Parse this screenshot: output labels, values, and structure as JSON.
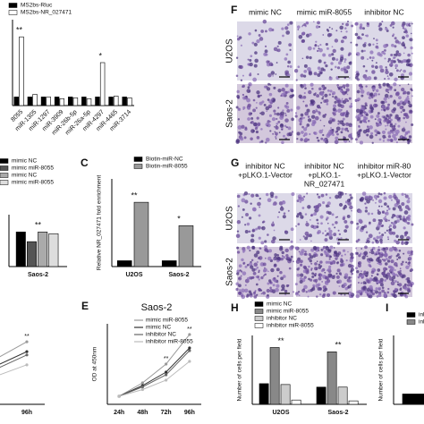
{
  "chart_data": [
    {
      "type": "bar",
      "categories": [
        "8055",
        "miR-1305",
        "miR-1297",
        "miR-3909",
        "miR-26b-5p",
        "miR-26a-5p",
        "miR-4297",
        "miR-4465",
        "miR-3714"
      ],
      "series": [
        {
          "name": "MS2bs-Rluc",
          "color": "#000000",
          "values": [
            1,
            1,
            1,
            1,
            1,
            1,
            1,
            1,
            1
          ]
        },
        {
          "name": "MS2bs-NR_027471",
          "color": "#ffffff",
          "values": [
            8,
            1.3,
            1,
            0.8,
            0.9,
            0.8,
            5,
            1.1,
            0.9
          ]
        }
      ],
      "significance": [
        "**",
        null,
        null,
        null,
        null,
        null,
        "*",
        null,
        null
      ],
      "ylim": [
        0,
        10
      ]
    },
    {
      "type": "bar",
      "categories": [
        "Saos-2"
      ],
      "series": [
        {
          "name": "mimic NC",
          "color": "#000000",
          "values": [
            1.0
          ]
        },
        {
          "name": "mimic miR-8055",
          "color": "#555555",
          "values": [
            0.72
          ]
        },
        {
          "name": "mimic NC",
          "color": "#aaaaaa",
          "values": [
            1.0
          ]
        },
        {
          "name": "mimic miR-8055",
          "color": "#dddddd",
          "values": [
            0.95
          ]
        }
      ],
      "significance": [
        "**"
      ],
      "ylim": [
        0,
        1.5
      ]
    },
    {
      "type": "bar",
      "panel": "C",
      "y_label": "Relative NR_027471 fold enrichment",
      "categories": [
        "U2OS",
        "Saos-2"
      ],
      "series": [
        {
          "name": "Biotin-miR-NC",
          "color": "#000000",
          "values": [
            1,
            1
          ]
        },
        {
          "name": "Biotin-miR-8055",
          "color": "#999999",
          "values": [
            11,
            7
          ]
        }
      ],
      "significance": [
        "**",
        "*"
      ],
      "ylim": [
        0,
        15
      ]
    },
    {
      "type": "line",
      "categories": [
        "2h",
        "96h"
      ],
      "series": [
        {
          "color": "#999999",
          "values": [
            1.3,
            1.9
          ]
        },
        {
          "color": "#333333",
          "values": [
            1.1,
            1.6
          ]
        },
        {
          "color": "#666666",
          "values": [
            1.0,
            1.5
          ]
        },
        {
          "color": "#bbbbbb",
          "values": [
            0.8,
            1.2
          ]
        }
      ],
      "significance": [
        null,
        "**"
      ],
      "ylim": [
        0,
        2.5
      ]
    },
    {
      "type": "line",
      "panel": "E",
      "title": "Saos-2",
      "y_label": "OD at 450nm",
      "categories": [
        "24h",
        "48h",
        "72h",
        "96h"
      ],
      "series": [
        {
          "name": "mimic miR-8055",
          "color": "#999999",
          "values": [
            0.3,
            0.8,
            1.5,
            2.6
          ]
        },
        {
          "name": "mimic NC",
          "color": "#333333",
          "values": [
            0.3,
            0.7,
            1.2,
            2.1
          ]
        },
        {
          "name": "inhibitor NC",
          "color": "#666666",
          "values": [
            0.3,
            0.65,
            1.1,
            2.0
          ]
        },
        {
          "name": "inhibitor miR-8055",
          "color": "#bbbbbb",
          "values": [
            0.3,
            0.55,
            0.9,
            1.6
          ]
        }
      ],
      "significance": [
        null,
        null,
        "**",
        "**"
      ],
      "ylim": [
        0,
        3
      ]
    },
    {
      "type": "bar",
      "panel": "H",
      "y_label": "Number of cells per field",
      "categories": [
        "U2OS",
        "Saos-2"
      ],
      "series": [
        {
          "name": "mimic NC",
          "color": "#000000",
          "values": [
            120,
            100
          ]
        },
        {
          "name": "mimic miR-8055",
          "color": "#888888",
          "values": [
            330,
            305
          ]
        },
        {
          "name": "inhibitor NC",
          "color": "#cccccc",
          "values": [
            115,
            100
          ]
        },
        {
          "name": "inhibitor miR-8055",
          "color": "#ffffff",
          "values": [
            25,
            20
          ]
        }
      ],
      "significance": [
        "**",
        "**"
      ],
      "ylim": [
        0,
        400
      ]
    },
    {
      "type": "bar",
      "panel": "I",
      "y_label": "Number of cells per field",
      "categories": [
        "U2"
      ],
      "series": [
        {
          "name": "inh",
          "color": "#000000",
          "values": [
            60
          ]
        },
        {
          "name": "inhi",
          "color": "#888888",
          "values": [
            150
          ]
        }
      ],
      "significance": [
        null
      ],
      "ylim": [
        0,
        400
      ]
    }
  ],
  "micrographs": [
    {
      "panel": "F",
      "columns": [
        [
          "mimic NC"
        ],
        [
          "mimic miR-8055"
        ],
        [
          "inhibitor NC"
        ]
      ],
      "rows": [
        "U2OS",
        "Saos-2"
      ]
    },
    {
      "panel": "G",
      "columns": [
        [
          "inhibitor NC",
          "+pLKO.1-Vector"
        ],
        [
          "inhibitor NC",
          "+pLKO.1-",
          "NR_027471"
        ],
        [
          "inhibitor miR-80",
          "+pLKO.1-Vector"
        ]
      ],
      "rows": [
        "U2OS",
        "Saos-2"
      ]
    }
  ]
}
